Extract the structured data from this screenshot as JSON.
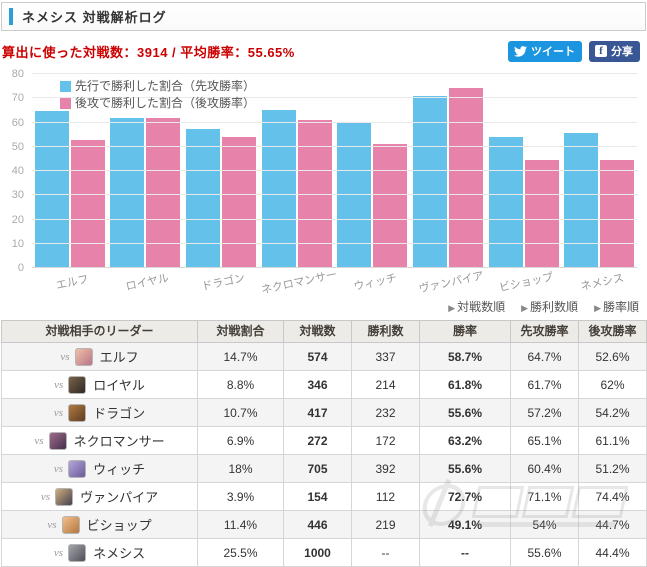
{
  "header": {
    "title": "ネメシス 対戦解析ログ"
  },
  "stats": {
    "text": "算出に使った対戦数：3914 / 平均勝率：55.65%"
  },
  "share": {
    "tweet_label": "ツイート",
    "facebook_label": "分享",
    "facebook_f": "f"
  },
  "chart_data": {
    "type": "bar",
    "categories": [
      "エルフ",
      "ロイヤル",
      "ドラゴン",
      "ネクロマンサー",
      "ウィッチ",
      "ヴァンパイア",
      "ビショップ",
      "ネメシス"
    ],
    "series": [
      {
        "name": "先行で勝利した割合（先攻勝率）",
        "color": "#63c1ea",
        "values": [
          64.7,
          61.7,
          57.2,
          65.1,
          60.4,
          71.1,
          54,
          55.6
        ]
      },
      {
        "name": "後攻で勝利した割合（後攻勝率）",
        "color": "#e783ab",
        "values": [
          52.6,
          62,
          54.2,
          61.1,
          51.2,
          74.4,
          44.7,
          44.4
        ]
      }
    ],
    "title": "",
    "xlabel": "",
    "ylabel": "",
    "ymax": 80,
    "yticks": [
      0,
      10,
      20,
      30,
      40,
      50,
      60,
      70,
      80
    ],
    "grid": true,
    "legend_position": "top-left"
  },
  "sort_links": {
    "arrow": "▶",
    "items": [
      "対戦数順",
      "勝利数順",
      "勝率順"
    ]
  },
  "table": {
    "vs_label": "vs",
    "headers": [
      "対戦相手のリーダー",
      "対戦割合",
      "対戦数",
      "勝利数",
      "勝率",
      "先攻勝率",
      "後攻勝率"
    ],
    "rows": [
      {
        "name": "エルフ",
        "avatar_colors": [
          "#eec0a8",
          "#b87585"
        ],
        "ratio": "14.7%",
        "battles": "574",
        "wins": "337",
        "win_rate": "58.7%",
        "win_rate_style": "hot",
        "first": "64.7%",
        "second": "52.6%"
      },
      {
        "name": "ロイヤル",
        "avatar_colors": [
          "#7a6248",
          "#2f2a26"
        ],
        "ratio": "8.8%",
        "battles": "346",
        "wins": "214",
        "win_rate": "61.8%",
        "win_rate_style": "hot",
        "first": "61.7%",
        "second": "62%"
      },
      {
        "name": "ドラゴン",
        "avatar_colors": [
          "#b07a40",
          "#5f3c22"
        ],
        "ratio": "10.7%",
        "battles": "417",
        "wins": "232",
        "win_rate": "55.6%",
        "win_rate_style": "hot",
        "first": "57.2%",
        "second": "54.2%"
      },
      {
        "name": "ネクロマンサー",
        "avatar_colors": [
          "#a06a8a",
          "#45304e"
        ],
        "ratio": "6.9%",
        "battles": "272",
        "wins": "172",
        "win_rate": "63.2%",
        "win_rate_style": "hot",
        "first": "65.1%",
        "second": "61.1%"
      },
      {
        "name": "ウィッチ",
        "avatar_colors": [
          "#b4a6da",
          "#6a5a9a"
        ],
        "ratio": "18%",
        "battles": "705",
        "wins": "392",
        "win_rate": "55.6%",
        "win_rate_style": "hot",
        "first": "60.4%",
        "second": "51.2%"
      },
      {
        "name": "ヴァンパイア",
        "avatar_colors": [
          "#cfae7e",
          "#46404f"
        ],
        "ratio": "3.9%",
        "battles": "154",
        "wins": "112",
        "win_rate": "72.7%",
        "win_rate_style": "very-hot",
        "first": "71.1%",
        "second": "74.4%"
      },
      {
        "name": "ビショップ",
        "avatar_colors": [
          "#f0c08c",
          "#b5763f"
        ],
        "ratio": "11.4%",
        "battles": "446",
        "wins": "219",
        "win_rate": "49.1%",
        "win_rate_style": "neutral",
        "first": "54%",
        "second": "44.7%"
      },
      {
        "name": "ネメシス",
        "avatar_colors": [
          "#a5a5ad",
          "#4f4f58"
        ],
        "ratio": "25.5%",
        "battles": "1000",
        "wins": "--",
        "win_rate": "--",
        "win_rate_style": "none",
        "first": "55.6%",
        "second": "44.4%"
      }
    ]
  }
}
